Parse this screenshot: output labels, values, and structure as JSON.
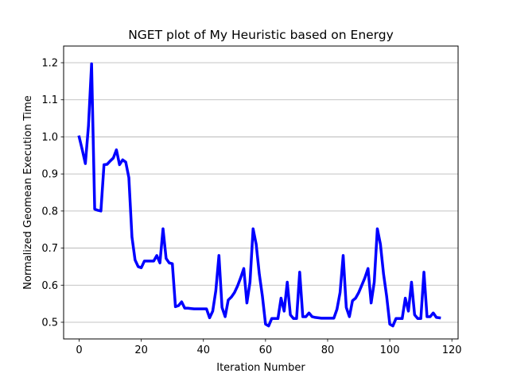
{
  "chart_data": {
    "type": "line",
    "title": "NGET plot of My Heuristic based on Energy",
    "xlabel": "Iteration Number",
    "ylabel": "Normalized Geomean Execution Time",
    "xlim": [
      -5,
      122
    ],
    "ylim": [
      0.455,
      1.245
    ],
    "xticks": [
      0,
      20,
      40,
      60,
      80,
      100,
      120
    ],
    "yticks": [
      0.5,
      0.6,
      0.7,
      0.8,
      0.9,
      1.0,
      1.1,
      1.2
    ],
    "xtick_labels": [
      "0",
      "20",
      "40",
      "60",
      "80",
      "100",
      "120"
    ],
    "ytick_labels": [
      "0.5",
      "0.6",
      "0.7",
      "0.8",
      "0.9",
      "1.0",
      "1.1",
      "1.2"
    ],
    "grid": "horizontal",
    "series": [
      {
        "color": "#0000ff",
        "x": [
          0,
          1,
          2,
          3,
          4,
          5,
          6,
          7,
          8,
          9,
          10,
          11,
          12,
          13,
          14,
          15,
          16,
          17,
          18,
          19,
          20,
          21,
          22,
          23,
          24,
          25,
          26,
          27,
          28,
          29,
          30,
          31,
          32,
          33,
          34,
          35,
          36,
          37,
          38,
          39,
          40,
          41,
          42,
          43,
          44,
          45,
          46,
          47,
          48,
          49,
          50,
          51,
          52,
          53,
          54,
          55,
          56,
          57,
          58,
          59,
          60,
          61,
          62,
          63,
          64,
          65,
          66,
          67,
          68,
          69,
          70,
          71,
          72,
          73,
          74,
          75,
          76,
          77,
          78,
          79,
          80,
          81,
          82,
          83,
          84,
          85,
          86,
          87,
          88,
          89,
          90,
          91,
          92,
          93,
          94,
          95,
          96,
          97,
          98,
          99,
          100,
          101,
          102,
          103,
          104,
          105,
          106,
          107,
          108,
          109,
          110,
          111,
          112,
          113,
          114,
          115,
          116
        ],
        "y": [
          1.0,
          0.965,
          0.928,
          1.03,
          1.197,
          0.805,
          0.802,
          0.8,
          0.925,
          0.926,
          0.935,
          0.943,
          0.965,
          0.925,
          0.938,
          0.932,
          0.89,
          0.73,
          0.668,
          0.65,
          0.647,
          0.665,
          0.665,
          0.665,
          0.665,
          0.68,
          0.66,
          0.752,
          0.672,
          0.66,
          0.658,
          0.542,
          0.545,
          0.555,
          0.538,
          0.538,
          0.537,
          0.536,
          0.536,
          0.536,
          0.536,
          0.536,
          0.512,
          0.53,
          0.585,
          0.68,
          0.54,
          0.515,
          0.56,
          0.568,
          0.58,
          0.598,
          0.62,
          0.645,
          0.552,
          0.608,
          0.752,
          0.71,
          0.63,
          0.57,
          0.495,
          0.49,
          0.51,
          0.51,
          0.51,
          0.565,
          0.53,
          0.608,
          0.52,
          0.51,
          0.51,
          0.635,
          0.515,
          0.515,
          0.525,
          0.515,
          0.513,
          0.512,
          0.511,
          0.511,
          0.511,
          0.511,
          0.511,
          0.535,
          0.58,
          0.68,
          0.54,
          0.515,
          0.558,
          0.565,
          0.58,
          0.6,
          0.62,
          0.645,
          0.552,
          0.608,
          0.752,
          0.71,
          0.63,
          0.57,
          0.495,
          0.49,
          0.51,
          0.51,
          0.51,
          0.565,
          0.53,
          0.608,
          0.52,
          0.51,
          0.51,
          0.635,
          0.515,
          0.515,
          0.525,
          0.513,
          0.512
        ]
      }
    ]
  }
}
